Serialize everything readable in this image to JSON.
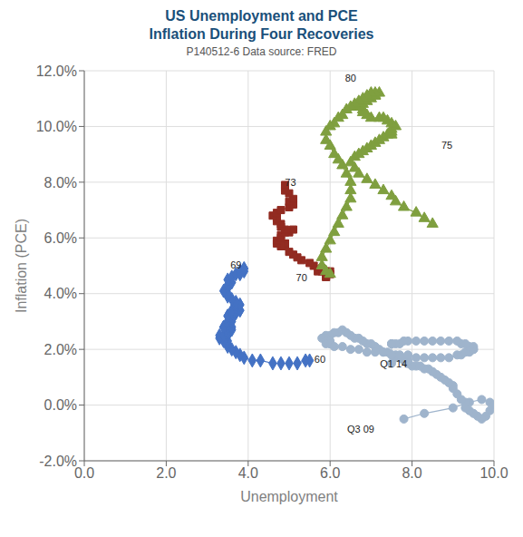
{
  "chart_data": {
    "type": "scatter",
    "title": "US Unemployment and PCE\nInflation During Four Recoveries",
    "subtitle": "P140512-6 Data source: FRED",
    "xlabel": "Unemployment",
    "ylabel": "Inflation (PCE)",
    "xlim": [
      0.0,
      10.0
    ],
    "ylim": [
      -0.02,
      0.12
    ],
    "xticks": [
      {
        "value": 0,
        "label": "0.0"
      },
      {
        "value": 2,
        "label": "2.0"
      },
      {
        "value": 4,
        "label": "4.0"
      },
      {
        "value": 6,
        "label": "6.0"
      },
      {
        "value": 8,
        "label": "8.0"
      },
      {
        "value": 10,
        "label": "10.0"
      }
    ],
    "yticks": [
      {
        "value": -0.02,
        "label": "-2.0%"
      },
      {
        "value": 0,
        "label": "0.0%"
      },
      {
        "value": 0.02,
        "label": "2.0%"
      },
      {
        "value": 0.04,
        "label": "4.0%"
      },
      {
        "value": 0.06,
        "label": "6.0%"
      },
      {
        "value": 0.08,
        "label": "8.0%"
      },
      {
        "value": 0.1,
        "label": "10.0%"
      },
      {
        "value": 0.12,
        "label": "12.0%"
      }
    ],
    "grid": true,
    "series": [
      {
        "color": "#4472c4",
        "marker": "diamond",
        "line_style": "solid",
        "x": [
          5.5,
          5.4,
          5.2,
          5.0,
          4.8,
          4.6,
          4.3,
          4.1,
          3.9,
          3.8,
          3.7,
          3.6,
          3.5,
          3.5,
          3.5,
          3.4,
          3.3,
          3.3,
          3.4,
          3.5,
          3.5,
          3.6,
          3.6,
          3.5,
          3.4,
          3.4,
          3.5,
          3.5,
          3.6,
          3.6,
          3.5,
          3.5,
          3.6,
          3.6,
          3.7,
          3.8,
          3.8,
          3.7,
          3.7,
          3.6,
          3.7,
          3.8,
          3.8,
          3.7,
          3.7,
          3.6,
          3.5,
          3.5,
          3.4,
          3.5,
          3.5,
          3.6,
          3.5,
          3.6,
          3.7,
          3.8,
          3.8,
          3.9,
          3.9,
          3.9
        ],
        "values": [
          0.016,
          0.016,
          0.015,
          0.015,
          0.015,
          0.015,
          0.016,
          0.016,
          0.017,
          0.018,
          0.019,
          0.02,
          0.021,
          0.022,
          0.023,
          0.023,
          0.024,
          0.025,
          0.025,
          0.025,
          0.026,
          0.027,
          0.028,
          0.028,
          0.028,
          0.028,
          0.029,
          0.03,
          0.03,
          0.031,
          0.032,
          0.032,
          0.033,
          0.033,
          0.033,
          0.034,
          0.034,
          0.034,
          0.034,
          0.034,
          0.035,
          0.036,
          0.036,
          0.036,
          0.037,
          0.038,
          0.039,
          0.04,
          0.041,
          0.042,
          0.043,
          0.044,
          0.045,
          0.046,
          0.047,
          0.047,
          0.048,
          0.048,
          0.049,
          0.049
        ]
      },
      {
        "color": "#922b21",
        "marker": "square",
        "line_style": "solid",
        "x": [
          5.9,
          5.9,
          6.0,
          5.9,
          5.8,
          5.7,
          5.8,
          5.9,
          6.0,
          5.8,
          5.6,
          5.5,
          5.3,
          5.2,
          5.1,
          5.0,
          4.9,
          4.9,
          4.9,
          4.9,
          4.8,
          4.7,
          4.7,
          4.8,
          4.8,
          4.9,
          5.0,
          5.1,
          4.9,
          4.8,
          4.8,
          4.7,
          4.7,
          4.6,
          4.7,
          4.8,
          5.0,
          5.1,
          5.0,
          5.1,
          5.0,
          4.9,
          4.9,
          4.9
        ],
        "values": [
          0.046,
          0.046,
          0.047,
          0.047,
          0.048,
          0.048,
          0.049,
          0.048,
          0.048,
          0.049,
          0.05,
          0.051,
          0.052,
          0.053,
          0.054,
          0.055,
          0.057,
          0.058,
          0.057,
          0.058,
          0.057,
          0.058,
          0.059,
          0.06,
          0.061,
          0.062,
          0.062,
          0.063,
          0.063,
          0.064,
          0.065,
          0.066,
          0.067,
          0.068,
          0.069,
          0.07,
          0.071,
          0.072,
          0.073,
          0.074,
          0.076,
          0.077,
          0.078,
          0.079
        ]
      },
      {
        "color": "#7f9f3f",
        "marker": "triangle",
        "line_style": "solid",
        "x": [
          8.5,
          8.3,
          8.1,
          7.8,
          7.6,
          7.5,
          7.3,
          7.1,
          6.9,
          6.7,
          6.6,
          6.5,
          6.6,
          6.7,
          6.8,
          6.9,
          7.0,
          7.1,
          7.2,
          7.3,
          7.4,
          7.5,
          7.5,
          7.5,
          7.6,
          7.5,
          7.4,
          7.3,
          7.2,
          7.0,
          6.9,
          6.8,
          6.8,
          6.7,
          6.8,
          6.9,
          7.0,
          7.1,
          7.1,
          7.2,
          7.1,
          7.0,
          6.9,
          6.8,
          6.7,
          6.6,
          6.5,
          6.4,
          6.3,
          6.2,
          6.1,
          6.0,
          5.9,
          5.9,
          6.0,
          6.1,
          6.2,
          6.3,
          6.4,
          6.5,
          6.5,
          6.5,
          6.4,
          6.3,
          6.2,
          6.1,
          6.0,
          5.9,
          5.8,
          5.8,
          5.9,
          6.0
        ],
        "values": [
          0.065,
          0.067,
          0.069,
          0.071,
          0.073,
          0.075,
          0.077,
          0.079,
          0.081,
          0.083,
          0.085,
          0.087,
          0.089,
          0.09,
          0.091,
          0.092,
          0.093,
          0.094,
          0.095,
          0.096,
          0.097,
          0.097,
          0.098,
          0.099,
          0.1,
          0.101,
          0.102,
          0.103,
          0.103,
          0.103,
          0.104,
          0.105,
          0.106,
          0.107,
          0.108,
          0.109,
          0.11,
          0.111,
          0.111,
          0.112,
          0.112,
          0.112,
          0.111,
          0.11,
          0.109,
          0.108,
          0.107,
          0.106,
          0.104,
          0.103,
          0.101,
          0.1,
          0.098,
          0.095,
          0.093,
          0.09,
          0.088,
          0.086,
          0.083,
          0.08,
          0.077,
          0.074,
          0.071,
          0.068,
          0.065,
          0.062,
          0.059,
          0.056,
          0.053,
          0.05,
          0.048,
          0.047
        ]
      },
      {
        "color": "#9fb4cc",
        "marker": "circle",
        "line_style": "solid",
        "x": [
          7.8,
          8.3,
          9.0,
          9.4,
          9.7,
          9.9,
          10.0,
          9.9,
          9.8,
          9.7,
          9.6,
          9.5,
          9.4,
          9.3,
          9.3,
          9.2,
          9.1,
          9.0,
          9.0,
          8.9,
          8.8,
          8.7,
          8.6,
          8.5,
          8.4,
          8.3,
          8.2,
          8.1,
          8.0,
          7.9,
          7.9,
          7.9,
          7.8,
          7.7,
          7.6,
          7.6,
          7.5,
          7.4,
          7.3,
          7.2,
          7.1,
          7.0,
          6.9,
          6.8,
          6.7,
          6.6,
          6.5,
          6.4,
          6.3,
          6.2,
          6.1,
          6.0,
          5.9,
          5.9,
          5.9,
          5.8,
          5.9,
          6.0,
          6.0,
          5.9,
          6.0,
          6.1,
          6.3,
          6.5,
          6.7,
          6.9,
          7.1,
          7.3,
          7.5,
          7.7,
          7.9,
          8.1,
          8.3,
          8.5,
          8.7,
          8.9,
          9.1,
          9.2,
          9.3,
          9.4,
          9.5,
          9.5,
          9.5,
          9.4,
          9.3,
          9.2,
          9.1,
          8.9,
          8.7,
          8.5,
          8.3,
          8.1,
          7.9,
          7.8,
          7.7,
          7.6,
          7.5,
          7.5,
          7.5,
          7.5
        ],
        "values": [
          -0.005,
          -0.003,
          -0.001,
          0.001,
          0.002,
          0.001,
          0.0,
          -0.002,
          -0.004,
          -0.005,
          -0.004,
          -0.003,
          -0.002,
          -0.001,
          0.001,
          0.002,
          0.004,
          0.006,
          0.007,
          0.008,
          0.009,
          0.01,
          0.011,
          0.012,
          0.013,
          0.013,
          0.014,
          0.014,
          0.014,
          0.015,
          0.015,
          0.016,
          0.016,
          0.017,
          0.017,
          0.018,
          0.018,
          0.019,
          0.019,
          0.02,
          0.021,
          0.022,
          0.022,
          0.023,
          0.024,
          0.024,
          0.025,
          0.026,
          0.027,
          0.026,
          0.026,
          0.025,
          0.025,
          0.024,
          0.024,
          0.024,
          0.023,
          0.023,
          0.022,
          0.022,
          0.022,
          0.021,
          0.021,
          0.02,
          0.02,
          0.019,
          0.019,
          0.019,
          0.018,
          0.018,
          0.018,
          0.017,
          0.017,
          0.017,
          0.017,
          0.017,
          0.018,
          0.018,
          0.019,
          0.019,
          0.02,
          0.02,
          0.021,
          0.021,
          0.022,
          0.022,
          0.023,
          0.023,
          0.023,
          0.023,
          0.023,
          0.023,
          0.023,
          0.023,
          0.022,
          0.022,
          0.022,
          0.022,
          0.022,
          0.015
        ]
      }
    ],
    "annotations": [
      {
        "text": "60",
        "x": 5.55,
        "y": 0.016
      },
      {
        "text": "69",
        "x": 3.5,
        "y": 0.05
      },
      {
        "text": "70",
        "x": 5.1,
        "y": 0.0455
      },
      {
        "text": "73",
        "x": 4.83,
        "y": 0.0795
      },
      {
        "text": "75",
        "x": 8.65,
        "y": 0.093
      },
      {
        "text": "80",
        "x": 6.3,
        "y": 0.117
      },
      {
        "text": "Q3 09",
        "x": 6.35,
        "y": -0.009
      },
      {
        "text": "Q1 14",
        "x": 7.15,
        "y": 0.0145
      }
    ]
  }
}
